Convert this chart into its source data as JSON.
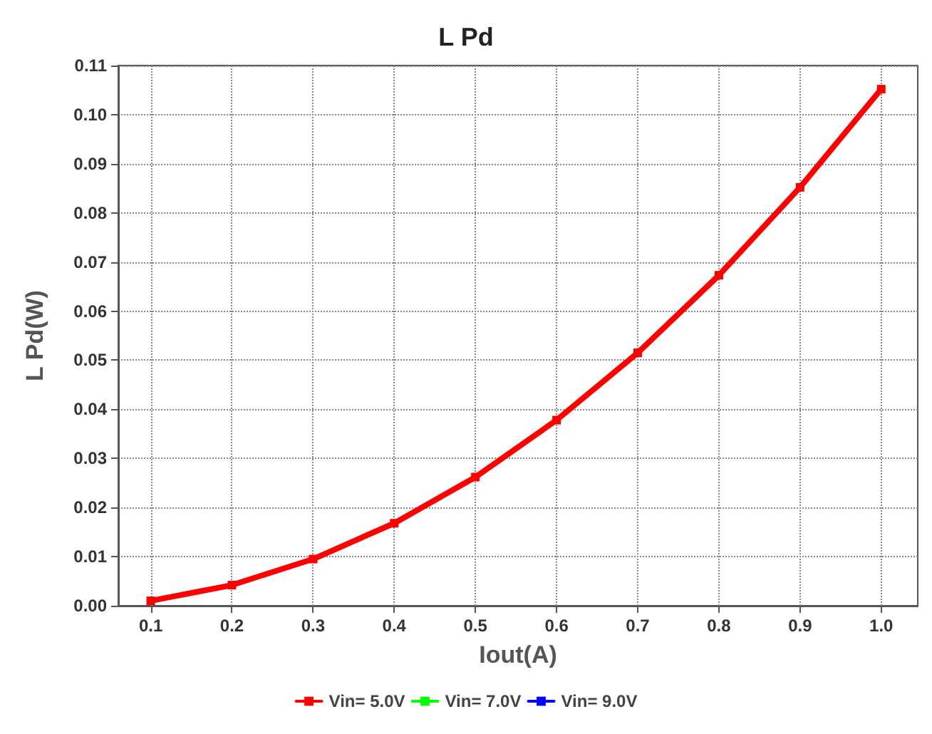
{
  "chart_data": {
    "type": "line",
    "title": "L Pd",
    "xlabel": "Iout(A)",
    "ylabel": "L Pd(W)",
    "x": [
      0.1,
      0.2,
      0.3,
      0.4,
      0.5,
      0.6,
      0.7,
      0.8,
      0.9,
      1.0
    ],
    "series": [
      {
        "name": "Vin= 5.0V",
        "color": "#ff0000",
        "values": [
          0.001,
          0.0042,
          0.0095,
          0.0168,
          0.0262,
          0.0378,
          0.0515,
          0.0673,
          0.0852,
          0.1052
        ]
      },
      {
        "name": "Vin= 7.0V",
        "color": "#00ff00",
        "values": [
          null,
          null,
          null,
          null,
          null,
          null,
          null,
          null,
          null,
          null
        ]
      },
      {
        "name": "Vin= 9.0V",
        "color": "#0000ff",
        "values": [
          null,
          null,
          null,
          null,
          null,
          null,
          null,
          null,
          null,
          null
        ]
      }
    ],
    "xlim": [
      0.06,
      1.045
    ],
    "xticks": [
      0.1,
      0.2,
      0.3,
      0.4,
      0.5,
      0.6,
      0.7,
      0.8,
      0.9,
      {
        "value": 1.0,
        "label": "1.0"
      }
    ],
    "ylim": [
      0,
      0.11
    ],
    "yticks": [
      {
        "value": 0,
        "label": "0.00"
      },
      0.01,
      0.02,
      0.03,
      0.04,
      0.05,
      0.06,
      0.07,
      0.08,
      0.09,
      {
        "value": 0.1,
        "label": "0.10"
      },
      0.11
    ],
    "grid": true,
    "legend": "bottom",
    "marker": "square",
    "line_style": "solid"
  }
}
